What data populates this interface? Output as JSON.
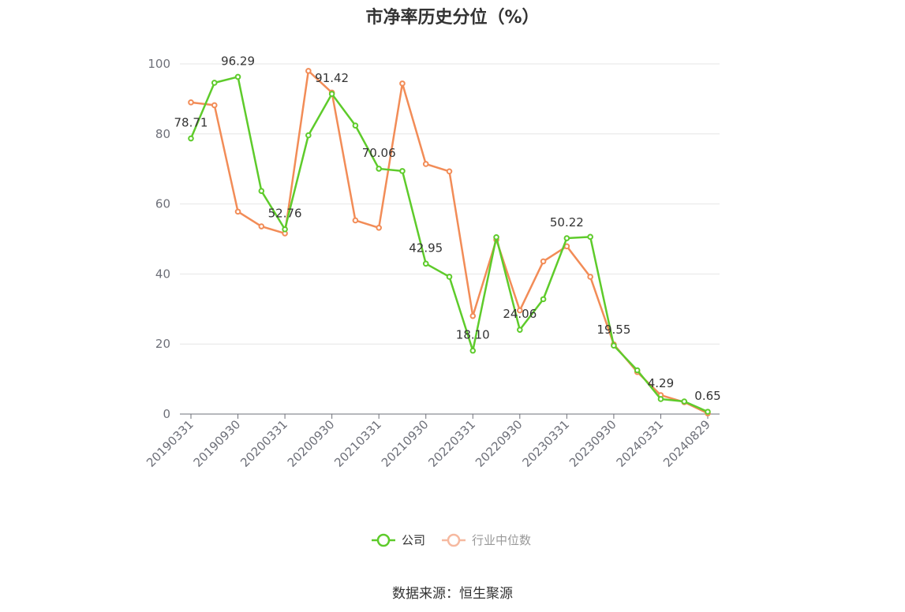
{
  "colors": {
    "company": "#5ecb2b",
    "industry": "#f28c57",
    "grid": "#e6e6e6",
    "axis": "#6e7079"
  },
  "source": "数据来源：恒生聚源",
  "chart_data": {
    "type": "line",
    "title": "市净率历史分位（%）",
    "ylim": [
      0,
      100
    ],
    "yticks": [
      0,
      20,
      40,
      60,
      80,
      100
    ],
    "grid": true,
    "legend_position": "bottom",
    "x": [
      "20190331",
      "20190630",
      "20190930",
      "20191231",
      "20200331",
      "20200630",
      "20200930",
      "20201231",
      "20210331",
      "20210630",
      "20210930",
      "20211231",
      "20220331",
      "20220630",
      "20220930",
      "20221231",
      "20230331",
      "20230630",
      "20230930",
      "20231231",
      "20240331",
      "20240630",
      "20240829"
    ],
    "xtick_labels": [
      "20190331",
      "20190930",
      "20200331",
      "20200930",
      "20210331",
      "20210930",
      "20220331",
      "20220930",
      "20230331",
      "20230930",
      "20240331",
      "20240829"
    ],
    "series": [
      {
        "name": "公司",
        "values": [
          78.71,
          94.6,
          96.29,
          63.7,
          52.76,
          79.6,
          91.42,
          82.4,
          70.06,
          69.4,
          42.95,
          39.2,
          18.1,
          50.5,
          24.06,
          32.8,
          50.22,
          50.6,
          19.55,
          12.5,
          4.29,
          3.6,
          0.65
        ],
        "labels": {
          "0": "78.71",
          "2": "96.29",
          "4": "52.76",
          "6": "91.42",
          "8": "70.06",
          "10": "42.95",
          "12": "18.10",
          "14": "24.06",
          "16": "50.22",
          "18": "19.55",
          "20": "4.29",
          "22": "0.65"
        }
      },
      {
        "name": "行业中位数",
        "values": [
          89.0,
          88.2,
          57.8,
          53.6,
          51.6,
          98.0,
          91.8,
          55.3,
          53.2,
          94.4,
          71.4,
          69.3,
          28.0,
          49.8,
          29.6,
          43.6,
          47.9,
          39.2,
          19.9,
          12.0,
          5.4,
          3.4,
          0.2
        ]
      }
    ]
  }
}
